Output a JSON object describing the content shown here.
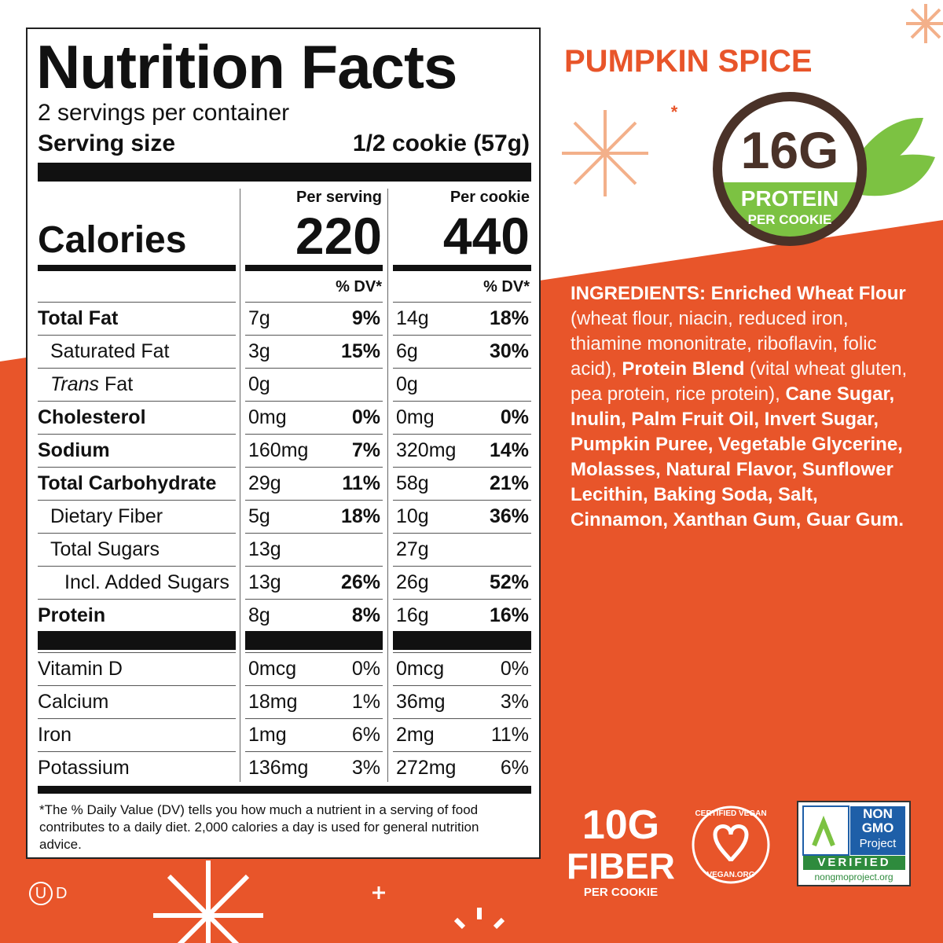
{
  "label": {
    "title": "Nutrition Facts",
    "servings": "2 servings per container",
    "serving_size_label": "Serving size",
    "serving_size": "1/2 cookie (57g)",
    "col_headers": [
      "Per serving",
      "Per cookie"
    ],
    "calories_label": "Calories",
    "calories": [
      "220",
      "440"
    ],
    "dv_header": "% DV*",
    "rows": [
      [
        "Total Fat",
        "7g",
        "9%",
        "14g",
        "18%"
      ],
      [
        "Saturated Fat",
        "3g",
        "15%",
        "6g",
        "30%"
      ],
      [
        [
          "Trans",
          "Fat"
        ],
        "0g",
        null,
        "0g",
        null
      ],
      [
        "Cholesterol",
        "0mg",
        "0%",
        "0mg",
        "0%"
      ],
      [
        "Sodium",
        "160mg",
        "7%",
        "320mg",
        "14%"
      ],
      [
        "Total Carbohydrate",
        "29g",
        "11%",
        "58g",
        "21%"
      ],
      [
        "Dietary Fiber",
        "5g",
        "18%",
        "10g",
        "36%"
      ],
      [
        "Total Sugars",
        "13g",
        null,
        "27g",
        null
      ],
      [
        "Incl. Added Sugars",
        "13g",
        "26%",
        "26g",
        "52%"
      ],
      [
        "Protein",
        "8g",
        "8%",
        "16g",
        "16%"
      ]
    ],
    "vitamins": [
      [
        "Vitamin D",
        "0mcg",
        "0%",
        "0mcg",
        "0%"
      ],
      [
        "Calcium",
        "18mg",
        "1%",
        "36mg",
        "3%"
      ],
      [
        "Iron",
        "1mg",
        "6%",
        "2mg",
        "11%"
      ],
      [
        "Potassium",
        "136mg",
        "3%",
        "272mg",
        "6%"
      ]
    ],
    "footnote": "*The % Daily Value (DV) tells you how much a nutrient in a serving of food contributes to a daily diet. 2,000 calories a day is used for general nutrition advice."
  },
  "product": {
    "flavor": "PUMPKIN SPICE",
    "protein_badge": {
      "amount": "16G",
      "label": "PROTEIN",
      "sub": "PER COOKIE"
    },
    "ingredients": [
      "INGREDIENTS: Enriched Wheat Flour",
      " (wheat flour, niacin, reduced iron, thiamine mononitrate, riboflavin, folic acid), ",
      "Protein Blend",
      " (vital wheat gluten, pea protein, rice protein), ",
      "Cane Sugar, Inulin, Palm Fruit Oil, Invert Sugar, Pumpkin Puree, Vegetable Glycerine, Molasses, Natural Flavor, Sunflower Lecithin, Baking Soda, Salt, Cinnamon, Xanthan Gum, Guar Gum."
    ],
    "fiber_badge": {
      "amount": "10G",
      "label": "FIBER",
      "sub": "PER COOKIE"
    },
    "vegan_logo": {
      "top": "CERTIFIED VEGAN",
      "bottom": "VEGAN.ORG"
    },
    "non_gmo_logo": {
      "lines": [
        "NON",
        "GMO",
        "Project"
      ],
      "verified": "VERIFIED",
      "url": "nongmoproject.org"
    },
    "kosher": [
      "U",
      "D"
    ]
  }
}
